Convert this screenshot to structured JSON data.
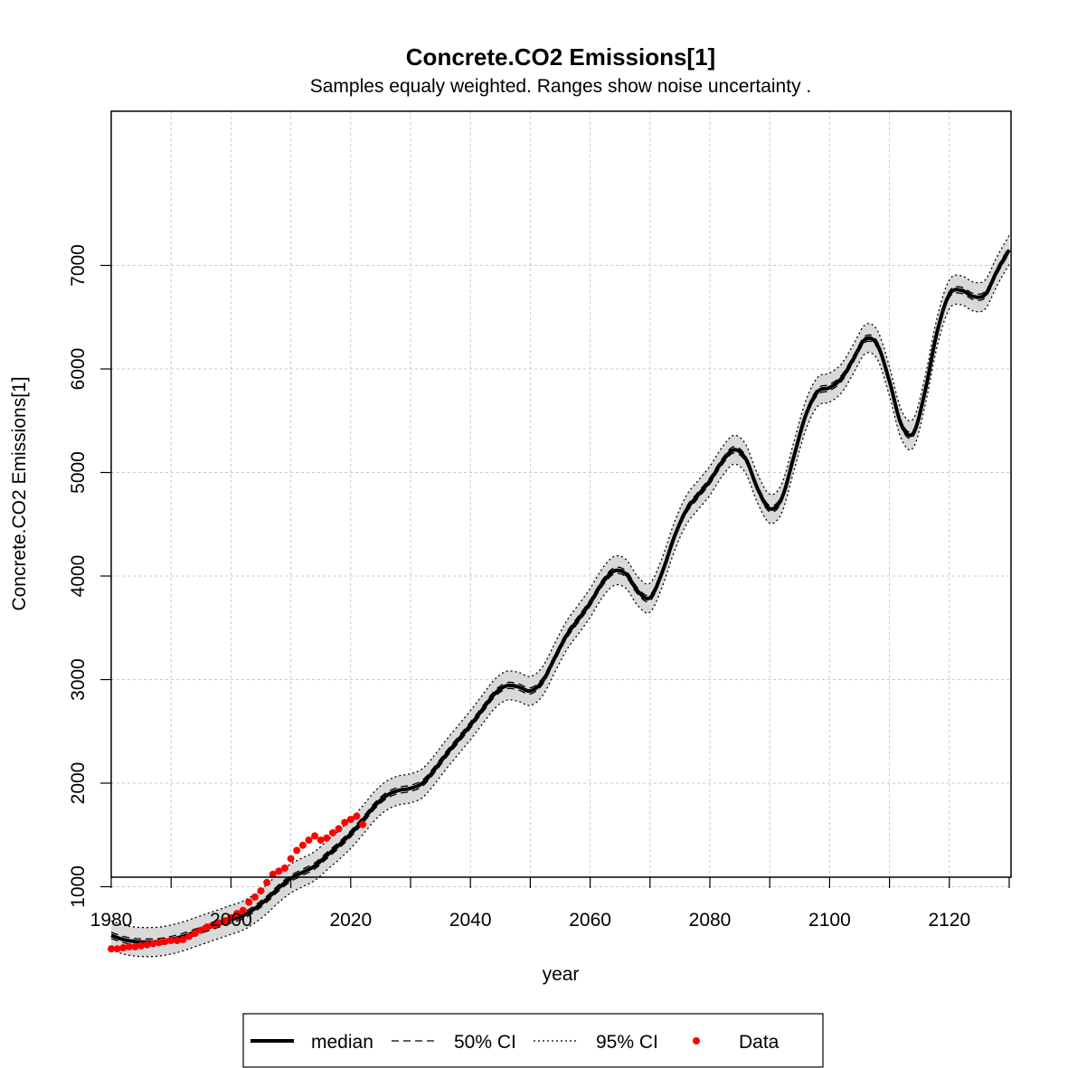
{
  "chart_data": {
    "type": "line",
    "title": "Concrete.CO2 Emissions[1]",
    "subtitle": "Samples equaly weighted. Ranges show  noise uncertainty .",
    "xlabel": "year",
    "ylabel": "Concrete.CO2 Emissions[1]",
    "xlim": [
      1980,
      2130
    ],
    "ylim": [
      100,
      7500
    ],
    "x_ticks": [
      1980,
      2000,
      2020,
      2040,
      2060,
      2080,
      2100,
      2120
    ],
    "x_minor_ticks": [
      1990,
      2010,
      2030,
      2050,
      2070,
      2090,
      2110,
      2130
    ],
    "y_ticks": [
      1000,
      2000,
      3000,
      4000,
      5000,
      6000,
      7000
    ],
    "grid": true,
    "legend_position": "bottom",
    "legend": [
      {
        "label": "median",
        "style": "solid-thick"
      },
      {
        "label": "50% CI",
        "style": "dashed"
      },
      {
        "label": "95% CI",
        "style": "dotted"
      },
      {
        "label": "Data",
        "style": "point-red"
      }
    ],
    "colors": {
      "median": "#000000",
      "band": "#d9d9d9",
      "data": "#ff0000",
      "grid": "#c8c8c8"
    },
    "ci50_halfwidth": 30,
    "ci95_halfwidth": 140,
    "median": {
      "x": [
        1980,
        1982,
        1984,
        1986,
        1988,
        1990,
        1992,
        1994,
        1996,
        1998,
        2000,
        2002,
        2004,
        2006,
        2008,
        2010,
        2012,
        2014,
        2016,
        2018,
        2020,
        2022,
        2024,
        2026,
        2028,
        2030,
        2032,
        2034,
        2036,
        2038,
        2040,
        2042,
        2044,
        2046,
        2048,
        2050,
        2052,
        2054,
        2056,
        2058,
        2060,
        2062,
        2064,
        2066,
        2068,
        2070,
        2072,
        2074,
        2076,
        2078,
        2080,
        2082,
        2084,
        2086,
        2088,
        2090,
        2092,
        2094,
        2096,
        2098,
        2100,
        2102,
        2104,
        2106,
        2108,
        2110,
        2112,
        2114,
        2116,
        2118,
        2120,
        2122,
        2124,
        2126,
        2128,
        2130
      ],
      "y": [
        530,
        490,
        470,
        465,
        470,
        490,
        520,
        560,
        600,
        640,
        680,
        720,
        790,
        880,
        990,
        1080,
        1140,
        1200,
        1300,
        1400,
        1510,
        1640,
        1780,
        1880,
        1930,
        1950,
        2000,
        2130,
        2280,
        2420,
        2560,
        2710,
        2860,
        2940,
        2930,
        2890,
        2980,
        3200,
        3420,
        3580,
        3740,
        3930,
        4050,
        4020,
        3850,
        3790,
        4030,
        4370,
        4630,
        4780,
        4920,
        5100,
        5220,
        5130,
        4840,
        4650,
        4750,
        5150,
        5550,
        5780,
        5820,
        5910,
        6100,
        6290,
        6230,
        5880,
        5460,
        5380,
        5800,
        6370,
        6720,
        6760,
        6700,
        6720,
        6950,
        7150
      ]
    },
    "data_points": {
      "x": [
        1980,
        1981,
        1982,
        1983,
        1984,
        1985,
        1986,
        1987,
        1988,
        1989,
        1990,
        1991,
        1992,
        1993,
        1994,
        1995,
        1996,
        1997,
        1998,
        1999,
        2000,
        2001,
        2002,
        2003,
        2004,
        2005,
        2006,
        2007,
        2008,
        2009,
        2010,
        2011,
        2012,
        2013,
        2014,
        2015,
        2016,
        2017,
        2018,
        2019,
        2020,
        2021,
        2022
      ],
      "y": [
        400,
        400,
        410,
        420,
        420,
        430,
        440,
        450,
        460,
        470,
        480,
        480,
        490,
        520,
        550,
        580,
        610,
        630,
        650,
        670,
        700,
        740,
        770,
        850,
        900,
        960,
        1040,
        1120,
        1150,
        1180,
        1270,
        1350,
        1400,
        1450,
        1490,
        1450,
        1470,
        1520,
        1560,
        1620,
        1650,
        1680,
        1600
      ]
    }
  }
}
